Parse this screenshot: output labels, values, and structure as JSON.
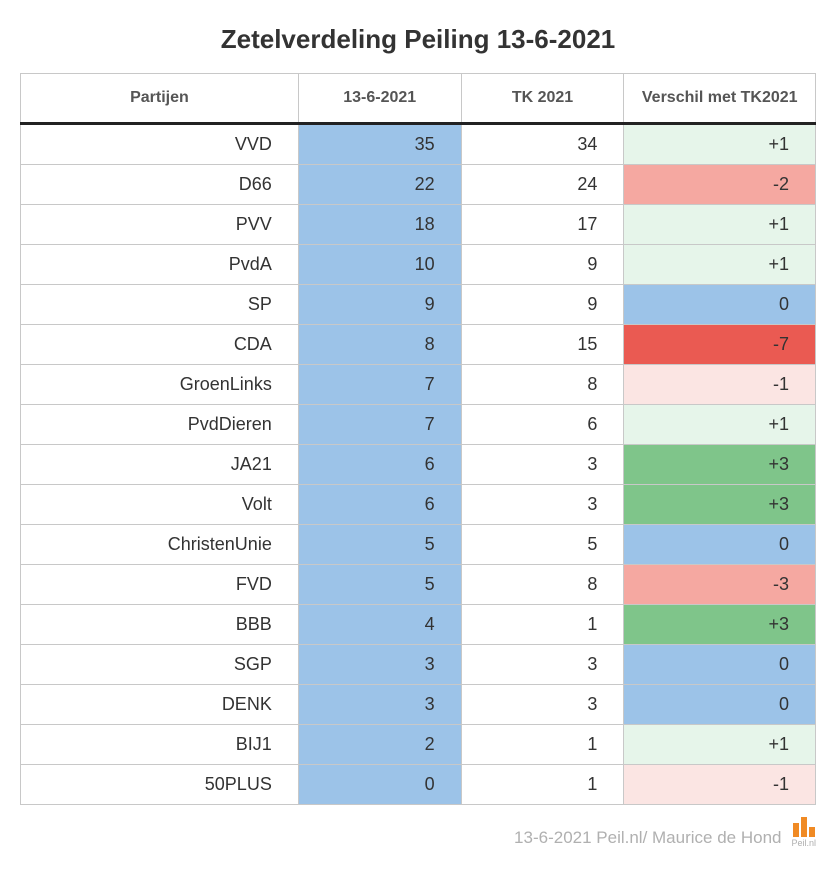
{
  "title": "Zetelverdeling Peiling 13-6-2021",
  "columns": {
    "party": "Partijen",
    "poll": "13-6-2021",
    "tk": "TK 2021",
    "diff": "Verschil met TK2021"
  },
  "poll_column_bg": "#9cc3e8",
  "colors": {
    "zero": "#9cc3e8",
    "pos_light": "#e6f5ea",
    "pos_strong": "#7fc58a",
    "neg_light": "#fbe5e3",
    "neg_mid": "#f5a8a1",
    "neg_strong": "#ea5a52"
  },
  "rows": [
    {
      "party": "VVD",
      "poll": 35,
      "tk": 34,
      "diff": "+1",
      "diff_bg": "#e6f5ea"
    },
    {
      "party": "D66",
      "poll": 22,
      "tk": 24,
      "diff": "-2",
      "diff_bg": "#f5a8a1"
    },
    {
      "party": "PVV",
      "poll": 18,
      "tk": 17,
      "diff": "+1",
      "diff_bg": "#e6f5ea"
    },
    {
      "party": "PvdA",
      "poll": 10,
      "tk": 9,
      "diff": "+1",
      "diff_bg": "#e6f5ea"
    },
    {
      "party": "SP",
      "poll": 9,
      "tk": 9,
      "diff": "0",
      "diff_bg": "#9cc3e8"
    },
    {
      "party": "CDA",
      "poll": 8,
      "tk": 15,
      "diff": "-7",
      "diff_bg": "#ea5a52"
    },
    {
      "party": "GroenLinks",
      "poll": 7,
      "tk": 8,
      "diff": "-1",
      "diff_bg": "#fbe5e3"
    },
    {
      "party": "PvdDieren",
      "poll": 7,
      "tk": 6,
      "diff": "+1",
      "diff_bg": "#e6f5ea"
    },
    {
      "party": "JA21",
      "poll": 6,
      "tk": 3,
      "diff": "+3",
      "diff_bg": "#7fc58a"
    },
    {
      "party": "Volt",
      "poll": 6,
      "tk": 3,
      "diff": "+3",
      "diff_bg": "#7fc58a"
    },
    {
      "party": "ChristenUnie",
      "poll": 5,
      "tk": 5,
      "diff": "0",
      "diff_bg": "#9cc3e8"
    },
    {
      "party": "FVD",
      "poll": 5,
      "tk": 8,
      "diff": "-3",
      "diff_bg": "#f5a8a1"
    },
    {
      "party": "BBB",
      "poll": 4,
      "tk": 1,
      "diff": "+3",
      "diff_bg": "#7fc58a"
    },
    {
      "party": "SGP",
      "poll": 3,
      "tk": 3,
      "diff": "0",
      "diff_bg": "#9cc3e8"
    },
    {
      "party": "DENK",
      "poll": 3,
      "tk": 3,
      "diff": "0",
      "diff_bg": "#9cc3e8"
    },
    {
      "party": "BIJ1",
      "poll": 2,
      "tk": 1,
      "diff": "+1",
      "diff_bg": "#e6f5ea"
    },
    {
      "party": "50PLUS",
      "poll": 0,
      "tk": 1,
      "diff": "-1",
      "diff_bg": "#fbe5e3"
    }
  ],
  "footer": "13-6-2021 Peil.nl/ Maurice de Hond",
  "logo_text": "Peil.nl"
}
